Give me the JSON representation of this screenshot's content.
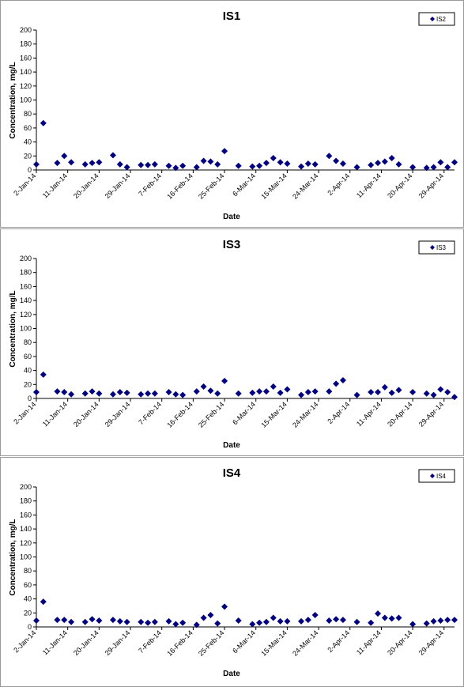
{
  "charts": [
    {
      "title": "IS1",
      "legend": "IS2",
      "xlabel": "Date",
      "ylabel": "Concentration, mg/L",
      "values": [
        8,
        67,
        null,
        10,
        20,
        11,
        null,
        8,
        10,
        11,
        null,
        21,
        8,
        4,
        null,
        7,
        7,
        8,
        null,
        6,
        3,
        6,
        null,
        4,
        13,
        12,
        8,
        27,
        null,
        6,
        null,
        5,
        6,
        10,
        17,
        11,
        9,
        null,
        5,
        9,
        8,
        null,
        20,
        13,
        9,
        null,
        4,
        null,
        7,
        10,
        12,
        17,
        8,
        null,
        4,
        null,
        3,
        4,
        11,
        4,
        11,
        null,
        2,
        2,
        5,
        5,
        4
      ]
    },
    {
      "title": "IS3",
      "legend": "IS3",
      "xlabel": "Date",
      "ylabel": "Concentration, mg/L",
      "values": [
        9,
        34,
        null,
        10,
        9,
        6,
        null,
        7,
        10,
        7,
        null,
        6,
        9,
        8,
        null,
        6,
        7,
        7,
        null,
        9,
        6,
        5,
        null,
        10,
        17,
        11,
        7,
        25,
        null,
        7,
        null,
        8,
        10,
        10,
        17,
        8,
        13,
        null,
        5,
        9,
        10,
        null,
        10,
        21,
        26,
        null,
        5,
        null,
        9,
        9,
        16,
        8,
        12,
        null,
        9,
        null,
        7,
        5,
        13,
        9,
        2,
        null,
        4,
        4,
        7,
        11,
        6
      ]
    },
    {
      "title": "IS4",
      "legend": "IS4",
      "xlabel": "Date",
      "ylabel": "Concentration, mg/L",
      "values": [
        9,
        36,
        null,
        10,
        10,
        7,
        null,
        7,
        11,
        9,
        null,
        10,
        8,
        7,
        null,
        7,
        6,
        7,
        null,
        8,
        4,
        6,
        null,
        3,
        13,
        17,
        5,
        29,
        null,
        9,
        null,
        4,
        6,
        7,
        13,
        8,
        8,
        null,
        8,
        10,
        17,
        null,
        9,
        11,
        10,
        null,
        7,
        null,
        6,
        19,
        13,
        12,
        13,
        null,
        4,
        null,
        5,
        8,
        9,
        10,
        10,
        null,
        3,
        5,
        5,
        11,
        9
      ]
    }
  ],
  "chart_data": [
    {
      "type": "scatter",
      "title": "IS1",
      "xlabel": "Date",
      "ylabel": "Concentration, mg/L",
      "ylim": [
        0,
        200
      ],
      "yticks": [
        0,
        20,
        40,
        60,
        80,
        100,
        120,
        140,
        160,
        180,
        200
      ],
      "x_range": [
        "2-Jan-14",
        "2-May-14"
      ],
      "x_tick_labels": [
        "2-Jan-14",
        "11-Jan-14",
        "20-Jan-14",
        "29-Jan-14",
        "7-Feb-14",
        "16-Feb-14",
        "25-Feb-14",
        "6-Mar-14",
        "15-Mar-14",
        "24-Mar-14",
        "2-Apr-14",
        "11-Apr-14",
        "20-Apr-14",
        "29-Apr-14"
      ],
      "legend_position": "top-right",
      "series": [
        {
          "name": "IS2",
          "color": "#000080"
        }
      ]
    },
    {
      "type": "scatter",
      "title": "IS3",
      "xlabel": "Date",
      "ylabel": "Concentration, mg/L",
      "ylim": [
        0,
        200
      ],
      "yticks": [
        0,
        20,
        40,
        60,
        80,
        100,
        120,
        140,
        160,
        180,
        200
      ],
      "x_range": [
        "2-Jan-14",
        "2-May-14"
      ],
      "x_tick_labels": [
        "2-Jan-14",
        "11-Jan-14",
        "20-Jan-14",
        "29-Jan-14",
        "7-Feb-14",
        "16-Feb-14",
        "25-Feb-14",
        "6-Mar-14",
        "15-Mar-14",
        "24-Mar-14",
        "2-Apr-14",
        "11-Apr-14",
        "20-Apr-14",
        "29-Apr-14"
      ],
      "legend_position": "top-right",
      "series": [
        {
          "name": "IS3",
          "color": "#000080"
        }
      ]
    },
    {
      "type": "scatter",
      "title": "IS4",
      "xlabel": "Date",
      "ylabel": "Concentration, mg/L",
      "ylim": [
        0,
        200
      ],
      "yticks": [
        0,
        20,
        40,
        60,
        80,
        100,
        120,
        140,
        160,
        180,
        200
      ],
      "x_range": [
        "2-Jan-14",
        "2-May-14"
      ],
      "x_tick_labels": [
        "2-Jan-14",
        "11-Jan-14",
        "20-Jan-14",
        "29-Jan-14",
        "7-Feb-14",
        "16-Feb-14",
        "25-Feb-14",
        "6-Mar-14",
        "15-Mar-14",
        "24-Mar-14",
        "2-Apr-14",
        "11-Apr-14",
        "20-Apr-14",
        "29-Apr-14"
      ],
      "legend_position": "top-right",
      "series": [
        {
          "name": "IS4",
          "color": "#000080"
        }
      ]
    }
  ]
}
